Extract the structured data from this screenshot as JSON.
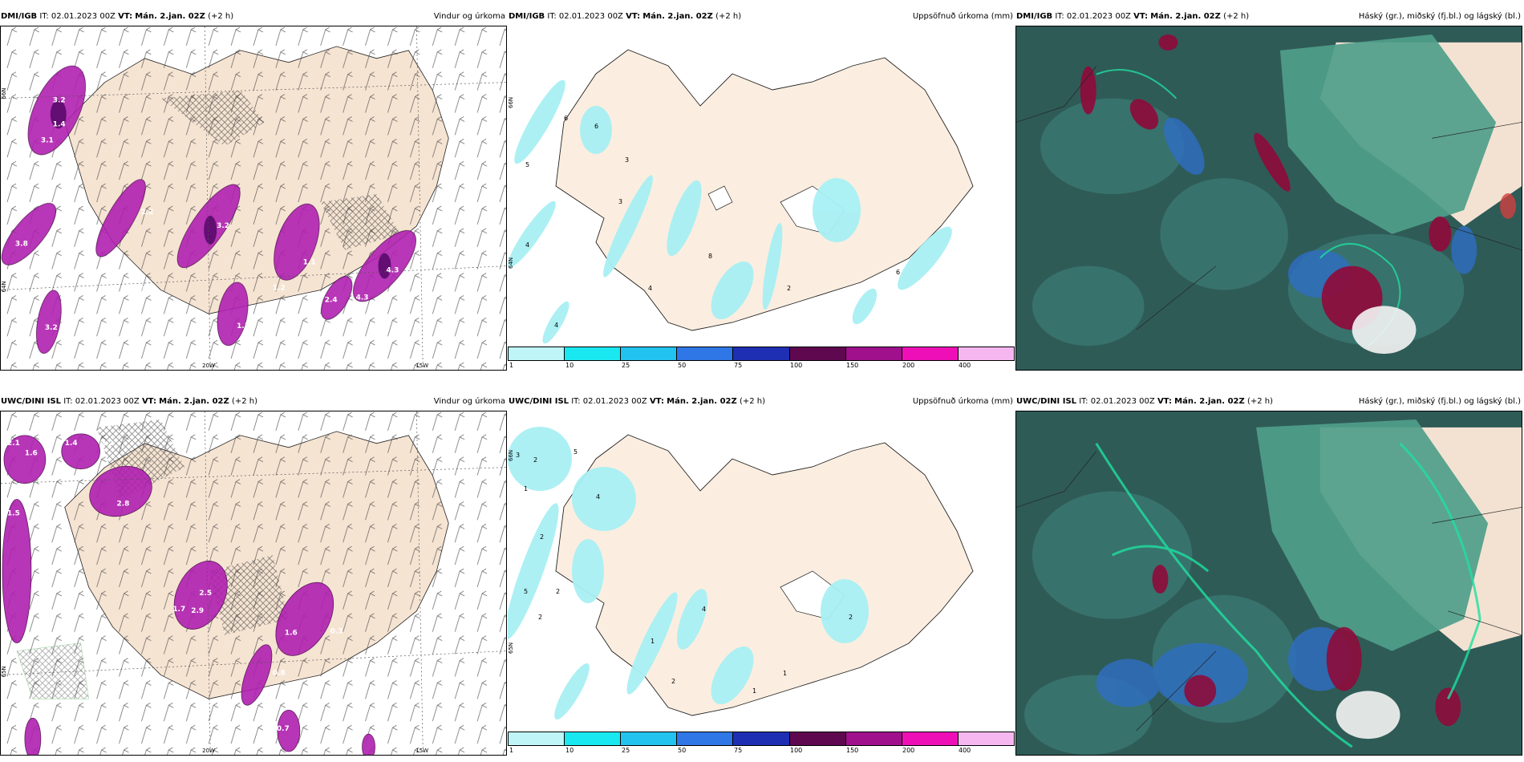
{
  "rows": [
    {
      "panels": [
        {
          "model": "DMI/IGB",
          "it_label": "IT:",
          "it_value": "02.01.2023 00Z",
          "vt_label": "VT:",
          "vt_value": "Mán. 2.jan. 02Z",
          "lead": "(+2 h)",
          "field": "Vindur og úrkoma"
        },
        {
          "model": "DMI/IGB",
          "it_label": "IT:",
          "it_value": "02.01.2023 00Z",
          "vt_label": "VT:",
          "vt_value": "Mán. 2.jan. 02Z",
          "lead": "(+2 h)",
          "field": "Uppsöfnuð úrkoma (mm)"
        },
        {
          "model": "DMI/IGB",
          "it_label": "IT:",
          "it_value": "02.01.2023 00Z",
          "vt_label": "VT:",
          "vt_value": "Mán. 2.jan. 02Z",
          "lead": "(+2 h)",
          "field": "Háský (gr.), miðský (fj.bl.) og lágský (bl.)"
        }
      ],
      "wind_values": [
        "3.2",
        "1.4",
        "3.1",
        "3.8",
        "2.2",
        "3.2",
        "1.1",
        "3.9",
        "4.3",
        "4.3",
        "2.4",
        "1.2",
        "3.2",
        "1.3"
      ],
      "precip_values": [
        "6",
        "5",
        "6",
        "3",
        "3",
        "4",
        "8",
        "2",
        "4",
        "6",
        "4"
      ]
    },
    {
      "panels": [
        {
          "model": "UWC/DINI ISL",
          "it_label": "IT:",
          "it_value": "02.01.2023 00Z",
          "vt_label": "VT:",
          "vt_value": "Mán. 2.jan. 02Z",
          "lead": "(+2 h)",
          "field": "Vindur og úrkoma"
        },
        {
          "model": "UWC/DINI ISL",
          "it_label": "IT:",
          "it_value": "02.01.2023 00Z",
          "vt_label": "VT:",
          "vt_value": "Mán. 2.jan. 02Z",
          "lead": "(+2 h)",
          "field": "Uppsöfnuð úrkoma (mm)"
        },
        {
          "model": "UWC/DINI ISL",
          "it_label": "IT:",
          "it_value": "02.01.2023 00Z",
          "vt_label": "VT:",
          "vt_value": "Mán. 2.jan. 02Z",
          "lead": "(+2 h)",
          "field": "Háský (gr.), miðský (fj.bl.) og lágský (bl.)"
        }
      ],
      "wind_values": [
        "2.1",
        "1.6",
        "1.4",
        "2.2",
        "2.8",
        "1.5",
        "2.5",
        "2.9",
        "1.6",
        "0.3",
        "0.7",
        "1.7",
        "0.8"
      ],
      "precip_values": [
        "3",
        "2",
        "5",
        "1",
        "2",
        "4",
        "5",
        "2",
        "2",
        "1",
        "4",
        "2",
        "1",
        "1",
        "2"
      ]
    }
  ],
  "axes": {
    "lon_20w": "20W",
    "lon_15w": "15W",
    "lat_65n": "65N",
    "lat_66n": "66N",
    "lat_64n": "64N"
  },
  "colorbar": {
    "ticks": [
      "1",
      "10",
      "25",
      "50",
      "75",
      "100",
      "150",
      "200",
      "400"
    ],
    "colors": [
      "#bff5f7",
      "#1ae8f0",
      "#22c3ef",
      "#2f76e6",
      "#1f2fb3",
      "#5e0850",
      "#a0108c",
      "#ee10b6",
      "#f6b7f0"
    ]
  },
  "colors": {
    "land": "#f6e4d3",
    "precip_purple": "#b020b0",
    "cloud_dark": "#2f5b57",
    "cloud_mid": "#4f9e8a",
    "cloud_blue": "#2f6ec4",
    "cloud_red": "#8e0b3b"
  }
}
